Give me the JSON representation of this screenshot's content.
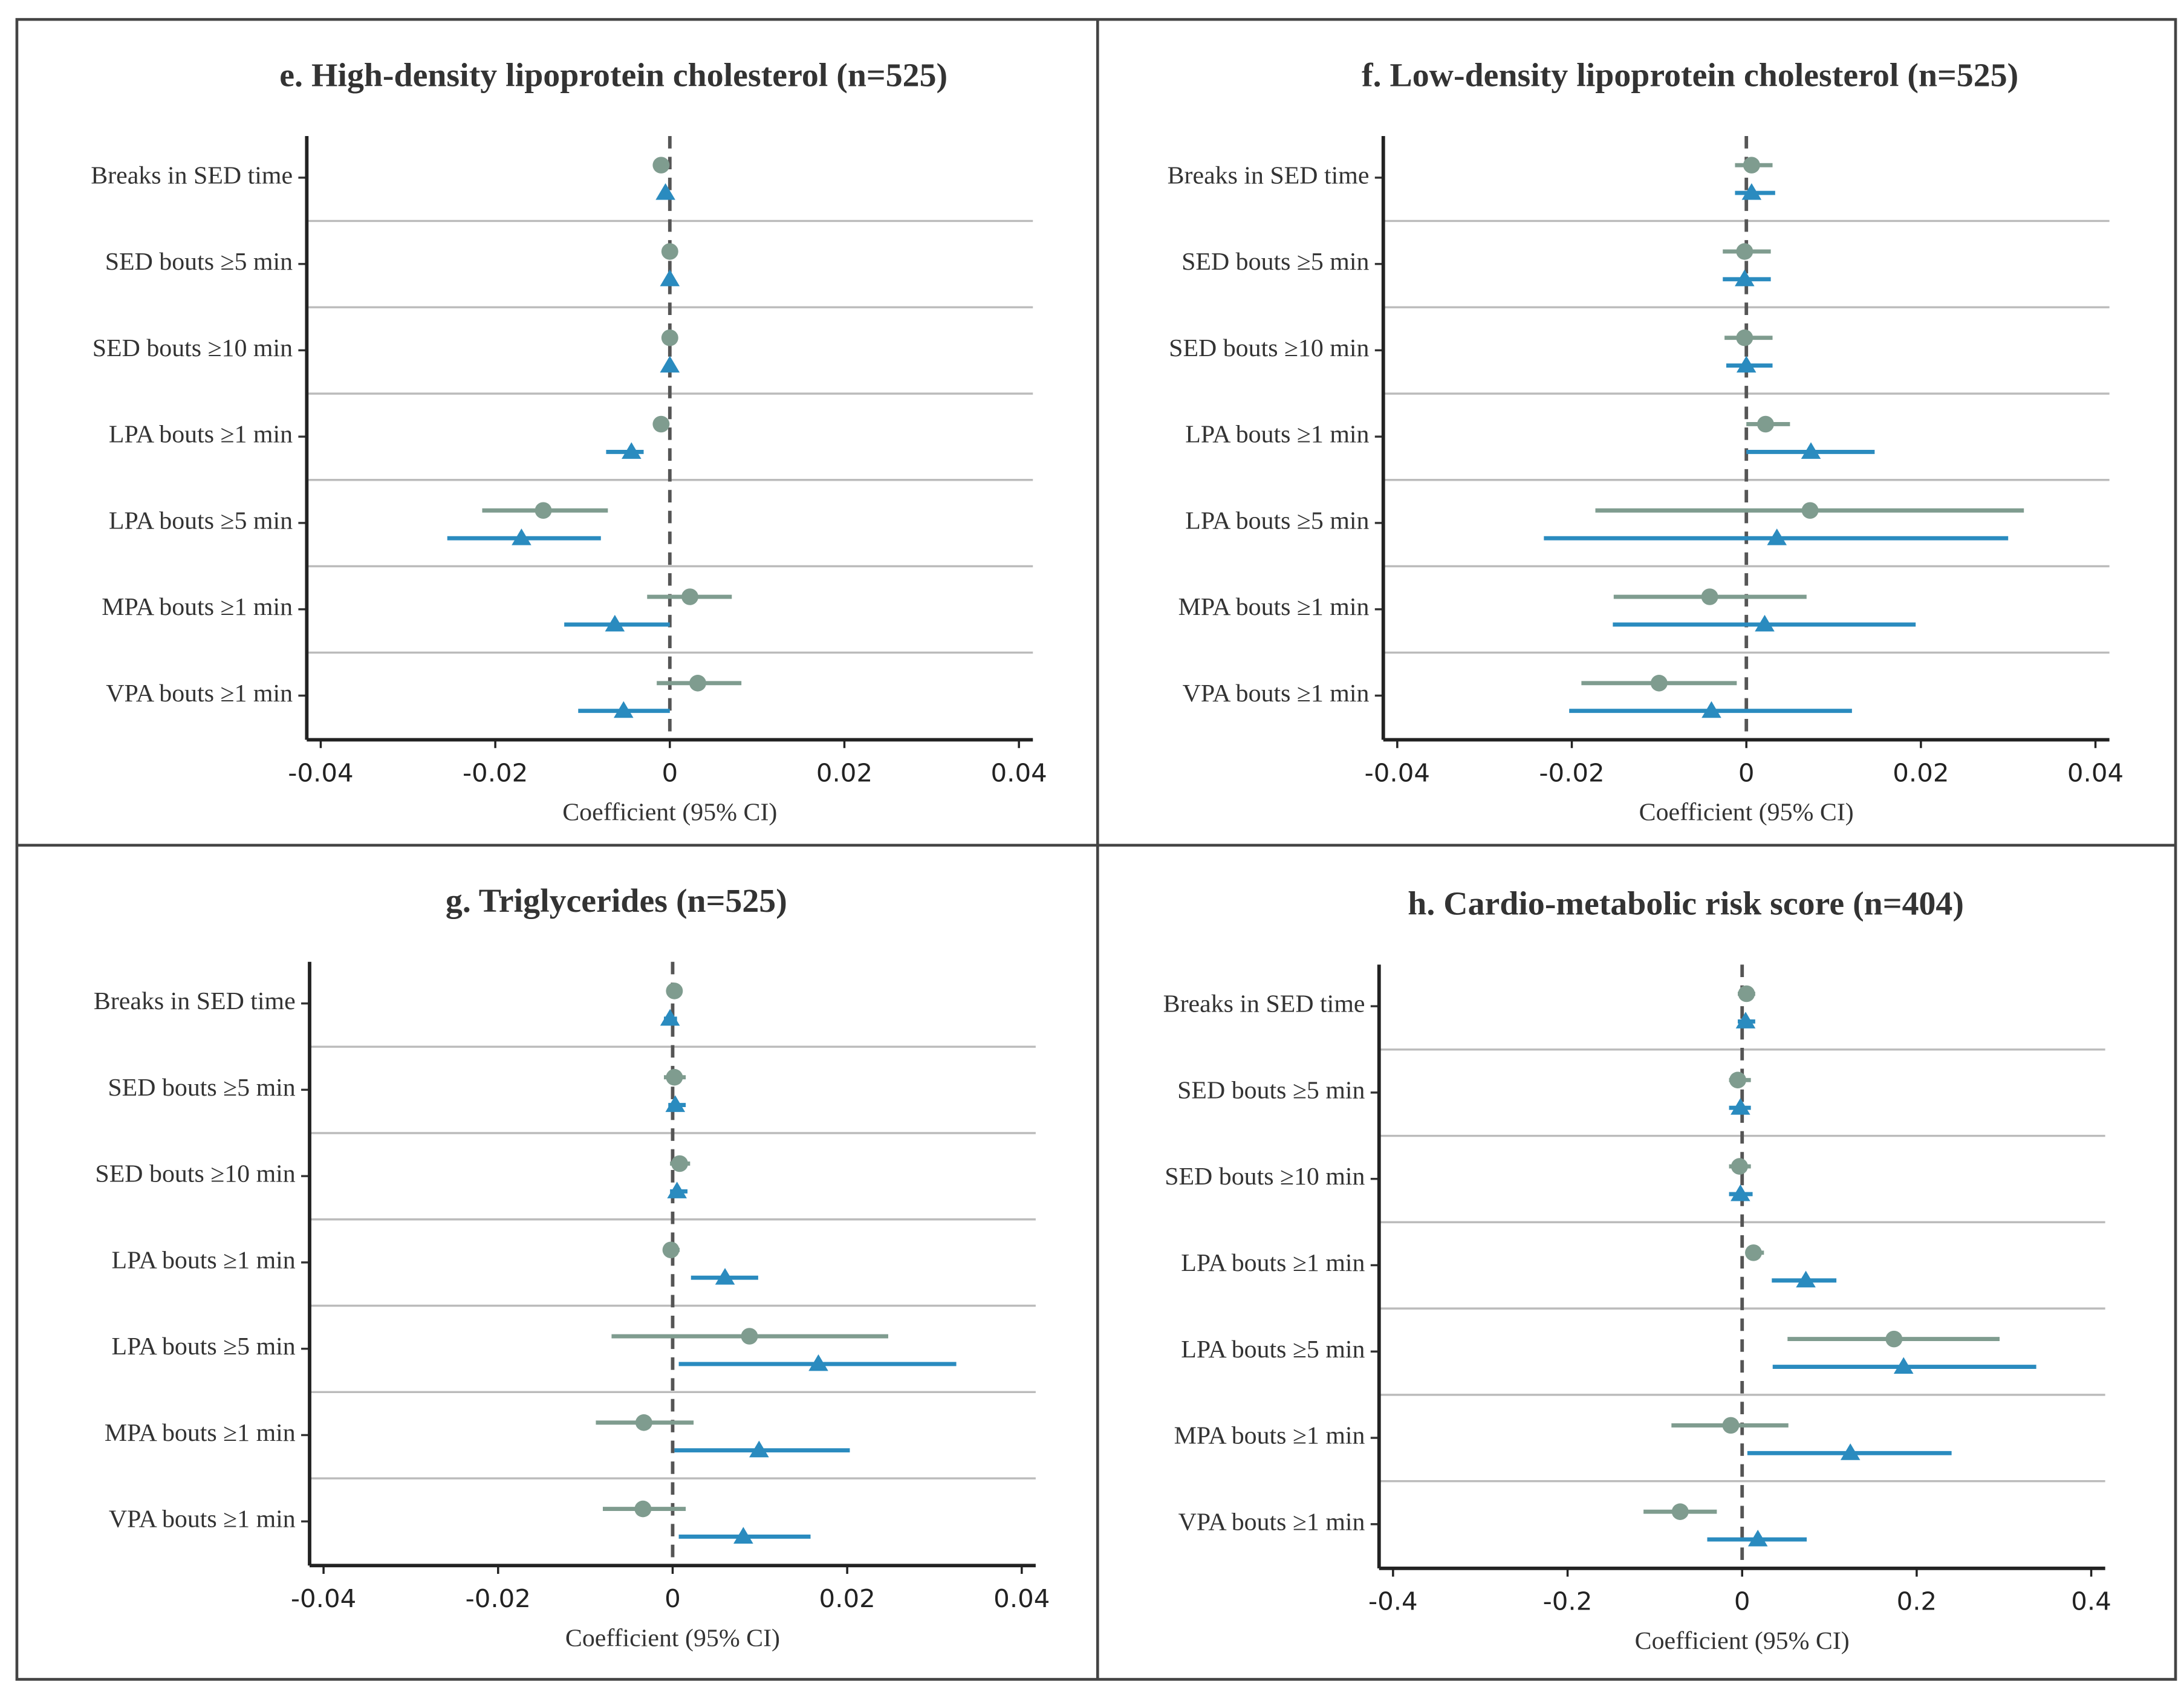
{
  "chart_data": [
    {
      "type": "forest",
      "title": "e. High-density lipoprotein cholesterol (n=525)",
      "x_label": "Coefficient (95% CI)",
      "categories": [
        "Breaks in SED time",
        "SED bouts ≥5 min",
        "SED bouts ≥10 min",
        "LPA bouts ≥1 min",
        "LPA bouts ≥5 min",
        "MPA bouts ≥1 min",
        "VPA bouts ≥1 min"
      ],
      "xlim": [
        -0.0416,
        0.0416
      ],
      "xticks": [
        -0.04,
        -0.02,
        0,
        0.02,
        0.04
      ],
      "reference_line": 0,
      "series": [
        {
          "color": "#7f9c8f",
          "marker": "circle",
          "values": [
            -0.001,
            0,
            0,
            -0.001,
            -0.0145,
            0.0023,
            0.0032
          ],
          "ci_low": [
            -0.0015,
            -0.0005,
            -0.0005,
            -0.0015,
            -0.0215,
            -0.0026,
            -0.0015
          ],
          "ci_high": [
            -0.0005,
            0.0005,
            0.0005,
            -0.0005,
            -0.0071,
            0.0071,
            0.0082
          ]
        },
        {
          "color": "#2a8bbf",
          "marker": "triangle",
          "values": [
            -0.0005,
            0,
            0,
            -0.0044,
            -0.017,
            -0.0063,
            -0.0053
          ],
          "ci_low": [
            -0.001,
            -0.0005,
            -0.0005,
            -0.0073,
            -0.0255,
            -0.0121,
            -0.0105
          ],
          "ci_high": [
            0,
            0.0005,
            0.0005,
            -0.003,
            -0.0079,
            0,
            0
          ]
        }
      ]
    },
    {
      "type": "forest",
      "title": "f. Low-density lipoprotein cholesterol (n=525)",
      "x_label": "Coefficient (95% CI)",
      "categories": [
        "Breaks in SED time",
        "SED bouts ≥5 min",
        "SED bouts ≥10 min",
        "LPA bouts ≥1 min",
        "LPA bouts ≥5 min",
        "MPA bouts ≥1 min",
        "VPA bouts ≥1 min"
      ],
      "xlim": [
        -0.0416,
        0.0416
      ],
      "xticks": [
        -0.04,
        -0.02,
        0,
        0.02,
        0.04
      ],
      "reference_line": 0,
      "series": [
        {
          "color": "#7f9c8f",
          "marker": "circle",
          "values": [
            0.0006,
            -0.0002,
            -0.0002,
            0.0022,
            0.0073,
            -0.0042,
            -0.01
          ],
          "ci_low": [
            -0.0013,
            -0.0027,
            -0.0025,
            0,
            -0.0173,
            -0.0152,
            -0.0189
          ],
          "ci_high": [
            0.003,
            0.0028,
            0.003,
            0.005,
            0.0318,
            0.0069,
            -0.0011
          ]
        },
        {
          "color": "#2a8bbf",
          "marker": "triangle",
          "values": [
            0.0006,
            -0.0002,
            0,
            0.0074,
            0.0035,
            0.0021,
            -0.004
          ],
          "ci_low": [
            -0.0013,
            -0.0027,
            -0.0023,
            0,
            -0.0232,
            -0.0153,
            -0.0203
          ],
          "ci_high": [
            0.0033,
            0.0028,
            0.003,
            0.0147,
            0.03,
            0.0194,
            0.0121
          ]
        }
      ]
    },
    {
      "type": "forest",
      "title": "g. Triglycerides (n=525)",
      "x_label": "Coefficient (95% CI)",
      "categories": [
        "Breaks in SED time",
        "SED bouts ≥5 min",
        "SED bouts ≥10 min",
        "LPA bouts ≥1 min",
        "LPA bouts ≥5 min",
        "MPA bouts ≥1 min",
        "VPA bouts ≥1 min"
      ],
      "xlim": [
        -0.0416,
        0.0416
      ],
      "xticks": [
        -0.04,
        -0.02,
        0,
        0.02,
        0.04
      ],
      "reference_line": 0,
      "series": [
        {
          "color": "#7f9c8f",
          "marker": "circle",
          "values": [
            0.0002,
            0.0002,
            0.0008,
            -0.0002,
            0.0088,
            -0.0033,
            -0.0034
          ],
          "ci_low": [
            -0.0005,
            -0.001,
            -0.0003,
            -0.001,
            -0.007,
            -0.0088,
            -0.008
          ],
          "ci_high": [
            0.001,
            0.0015,
            0.002,
            0.0008,
            0.0247,
            0.0024,
            0.0015
          ]
        },
        {
          "color": "#2a8bbf",
          "marker": "triangle",
          "values": [
            -0.0003,
            0.0003,
            0.0005,
            0.006,
            0.0167,
            0.0099,
            0.0081
          ],
          "ci_low": [
            -0.001,
            -0.0005,
            -0.0003,
            0.0021,
            0.0007,
            0.0002,
            0.0007
          ],
          "ci_high": [
            0.0005,
            0.0015,
            0.0017,
            0.0098,
            0.0325,
            0.0203,
            0.0158
          ]
        }
      ]
    },
    {
      "type": "forest",
      "title": "h. Cardio-metabolic risk score (n=404)",
      "x_label": "Coefficient (95% CI)",
      "categories": [
        "Breaks in SED time",
        "SED bouts ≥5 min",
        "SED bouts ≥10 min",
        "LPA bouts ≥1 min",
        "LPA bouts ≥5 min",
        "MPA bouts ≥1 min",
        "VPA bouts ≥1 min"
      ],
      "xlim": [
        -0.416,
        0.416
      ],
      "xticks": [
        -0.4,
        -0.2,
        0,
        0.2,
        0.4
      ],
      "reference_line": 0,
      "series": [
        {
          "color": "#7f9c8f",
          "marker": "circle",
          "values": [
            0.005,
            -0.005,
            -0.003,
            0.013,
            0.174,
            -0.013,
            -0.071
          ],
          "ci_low": [
            -0.005,
            -0.015,
            -0.015,
            0.005,
            0.052,
            -0.081,
            -0.113
          ],
          "ci_high": [
            0.015,
            0.01,
            0.01,
            0.025,
            0.295,
            0.053,
            -0.029
          ]
        },
        {
          "color": "#2a8bbf",
          "marker": "triangle",
          "values": [
            0.004,
            -0.002,
            -0.002,
            0.073,
            0.185,
            0.124,
            0.018
          ],
          "ci_low": [
            -0.005,
            -0.015,
            -0.015,
            0.034,
            0.035,
            0.006,
            -0.04
          ],
          "ci_high": [
            0.015,
            0.01,
            0.012,
            0.108,
            0.337,
            0.24,
            0.074
          ]
        }
      ]
    }
  ]
}
